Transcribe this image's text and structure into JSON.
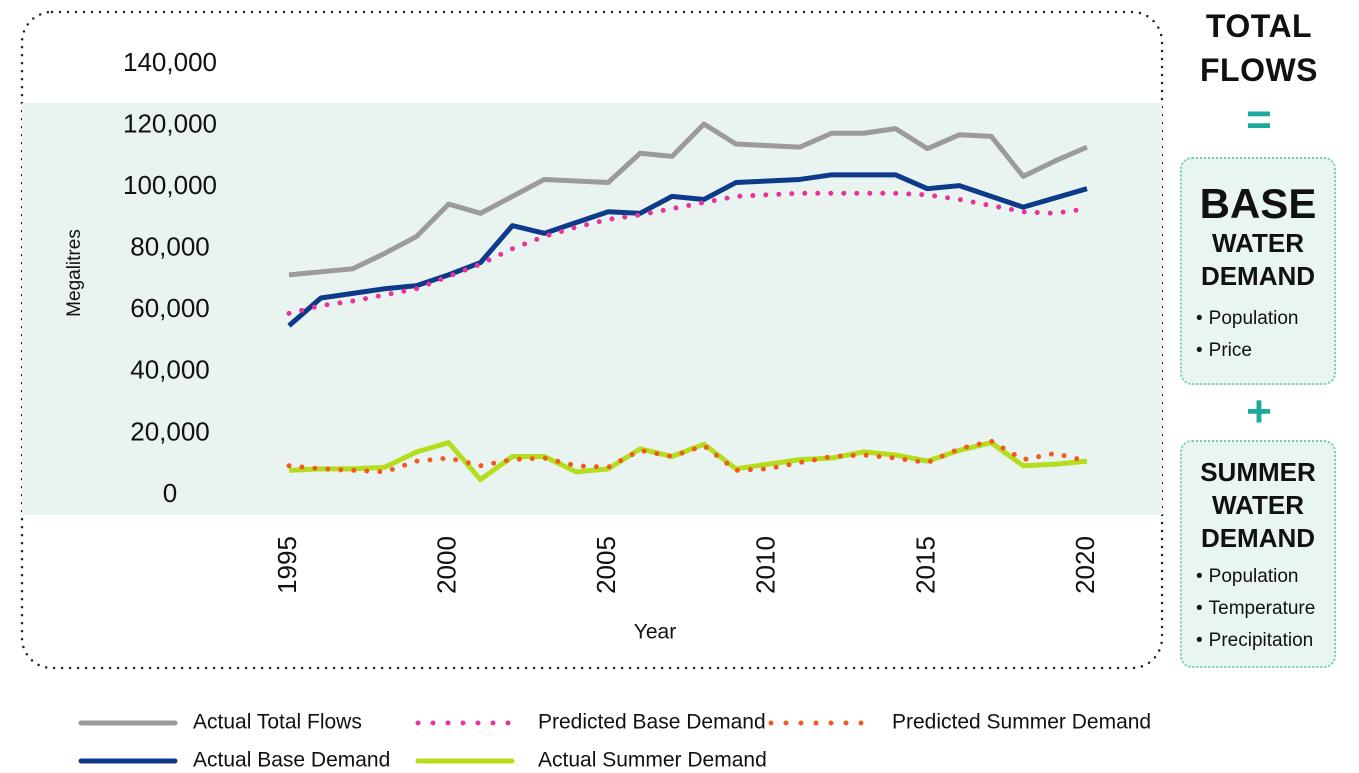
{
  "chart_data": {
    "type": "line",
    "x": [
      1995,
      1996,
      1997,
      1998,
      1999,
      2000,
      2001,
      2002,
      2003,
      2004,
      2005,
      2006,
      2007,
      2008,
      2009,
      2010,
      2011,
      2012,
      2013,
      2014,
      2015,
      2016,
      2017,
      2018,
      2019,
      2020
    ],
    "xlim": [
      1995,
      2020
    ],
    "xticks": [
      1995,
      2000,
      2005,
      2010,
      2015,
      2020
    ],
    "ylim": [
      0,
      140000
    ],
    "yticks": [
      0,
      {
        "value": 20000,
        "label": "20,000"
      },
      {
        "value": 40000,
        "label": "40,000"
      },
      {
        "value": 60000,
        "label": "60,000"
      },
      {
        "value": 80000,
        "label": "80,000"
      },
      {
        "value": 100000,
        "label": "100,000"
      },
      {
        "value": 120000,
        "label": "120,000"
      },
      {
        "value": 140000,
        "label": "140,000"
      }
    ],
    "xlabel": "Year",
    "ylabel": "Megalitres",
    "grid": false,
    "series": [
      {
        "name": "Actual Total Flows",
        "color": "#9b9b9b",
        "style": "solid",
        "values": [
          71500,
          72500,
          73500,
          78500,
          84000,
          94500,
          91500,
          97000,
          102500,
          102000,
          101500,
          111000,
          110000,
          120500,
          114000,
          113500,
          113000,
          117500,
          117500,
          119000,
          112500,
          117000,
          116500,
          103500,
          108500,
          113000
        ]
      },
      {
        "name": "Actual Base Demand",
        "color": "#0d3a8a",
        "style": "solid",
        "values": [
          55000,
          64000,
          65500,
          67000,
          68000,
          71500,
          75500,
          87500,
          85000,
          88500,
          92000,
          91500,
          97000,
          96000,
          101500,
          102000,
          102500,
          104000,
          104000,
          104000,
          99500,
          100500,
          97000,
          93500,
          96500,
          99500
        ]
      },
      {
        "name": "Predicted Base Demand",
        "color": "#e8339b",
        "style": "dotted",
        "values": [
          59000,
          61500,
          63000,
          65000,
          67000,
          71000,
          75000,
          80000,
          84000,
          87000,
          89500,
          91000,
          93000,
          95000,
          97000,
          97500,
          98000,
          98000,
          98000,
          98000,
          97500,
          96000,
          94000,
          92000,
          91500,
          93000
        ]
      },
      {
        "name": "Actual Summer Demand",
        "color": "#b5dd1e",
        "style": "solid",
        "values": [
          8000,
          8500,
          8500,
          9000,
          14000,
          17000,
          5000,
          12500,
          12500,
          7500,
          8500,
          15000,
          12500,
          16500,
          8500,
          10000,
          11500,
          12000,
          14000,
          13000,
          11000,
          14500,
          17000,
          9500,
          10000,
          11000
        ]
      },
      {
        "name": "Predicted Summer Demand",
        "color": "#f05a1e",
        "style": "dotted",
        "values": [
          9500,
          8500,
          8000,
          7500,
          11000,
          12000,
          9500,
          11500,
          12000,
          9500,
          9000,
          14500,
          12500,
          16000,
          8000,
          8500,
          10500,
          12500,
          13000,
          12000,
          10500,
          15000,
          17500,
          11500,
          13500,
          11000
        ]
      }
    ]
  },
  "panel": {
    "title": "TOTAL FLOWS",
    "equals": "=",
    "plus": "+",
    "base": {
      "title": "BASE",
      "subtitle": "WATER DEMAND",
      "items": [
        "Population",
        "Price"
      ]
    },
    "summer": {
      "title": "SUMMER",
      "subtitle": "WATER DEMAND",
      "items": [
        "Population",
        "Temperature",
        "Precipitation"
      ]
    }
  }
}
